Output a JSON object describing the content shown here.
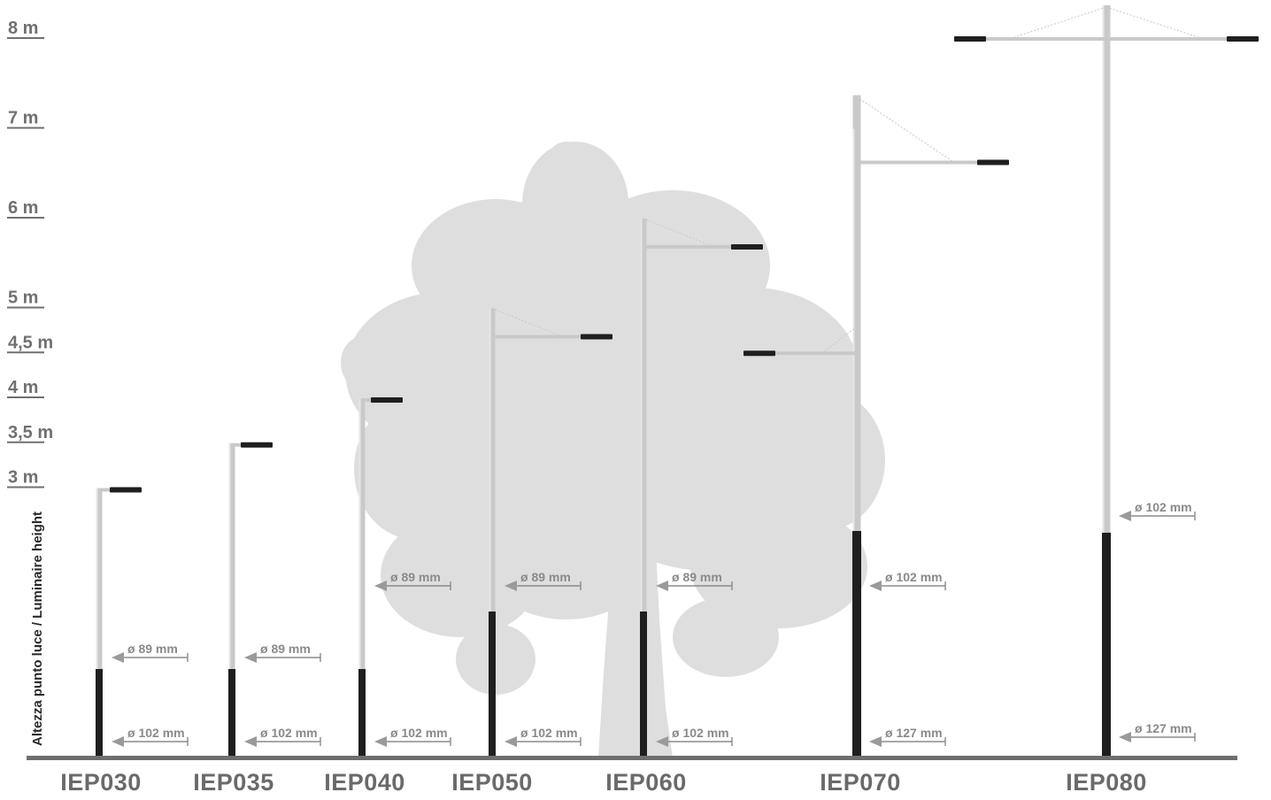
{
  "axis_title": "Altezza punto luce / Luminaire height",
  "height_levels": [
    {
      "label": "8 m",
      "value": 8
    },
    {
      "label": "7 m",
      "value": 7
    },
    {
      "label": "6 m",
      "value": 6
    },
    {
      "label": "5 m",
      "value": 5
    },
    {
      "label": "4,5 m",
      "value": 4.5
    },
    {
      "label": "4 m",
      "value": 4
    },
    {
      "label": "3,5 m",
      "value": 3.5
    },
    {
      "label": "3 m",
      "value": 3
    }
  ],
  "poles": [
    {
      "model": "IEP030",
      "height_m": 3,
      "upper_diameter": "ø 89 mm",
      "base_diameter": "ø 102 mm"
    },
    {
      "model": "IEP035",
      "height_m": 3.5,
      "upper_diameter": "ø 89 mm",
      "base_diameter": "ø 102 mm"
    },
    {
      "model": "IEP040",
      "height_m": 4,
      "upper_diameter": "ø 89 mm",
      "base_diameter": "ø 102 mm"
    },
    {
      "model": "IEP050",
      "height_m": 5,
      "upper_diameter": "ø 89 mm",
      "base_diameter": "ø 102 mm"
    },
    {
      "model": "IEP060",
      "height_m": 6,
      "upper_diameter": "ø 89 mm",
      "base_diameter": "ø 102 mm"
    },
    {
      "model": "IEP070",
      "height_m": 7,
      "secondary_height_m": 4.5,
      "upper_diameter": "ø 102 mm",
      "base_diameter": "ø 127 mm"
    },
    {
      "model": "IEP080",
      "height_m": 8,
      "arms": "double",
      "upper_diameter": "ø 102 mm",
      "base_diameter": "ø 127 mm"
    }
  ],
  "colors": {
    "pole": "#c9c9c9",
    "base_sleeve": "#1f1f1f",
    "luminaire": "#1f1f1f",
    "tree": "#dadada",
    "ground": "#6e6e6e",
    "text": "#707070"
  }
}
